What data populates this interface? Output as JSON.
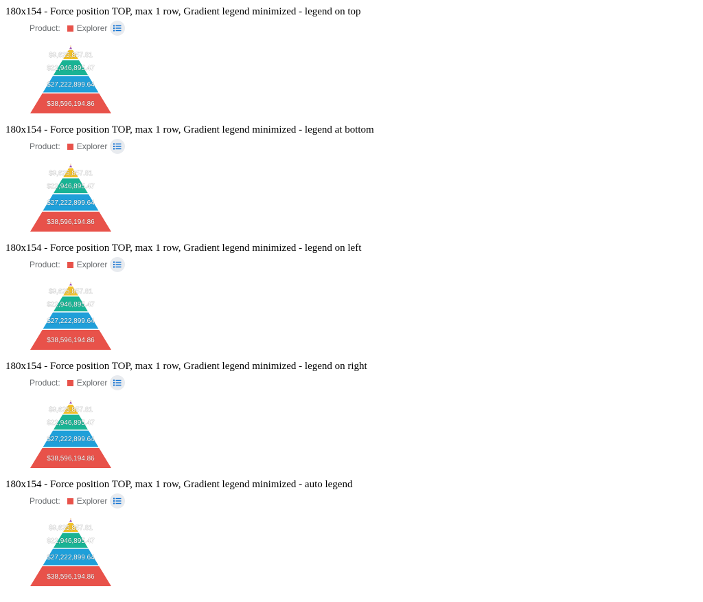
{
  "sections": [
    {
      "title": "180x154 - Force position TOP, max 1 row, Gradient legend minimized - legend on top"
    },
    {
      "title": "180x154 - Force position TOP, max 1 row, Gradient legend minimized - legend at bottom"
    },
    {
      "title": "180x154 - Force position TOP, max 1 row, Gradient legend minimized - legend on left"
    },
    {
      "title": "180x154 - Force position TOP, max 1 row, Gradient legend minimized - legend on right"
    },
    {
      "title": "180x154 - Force position TOP, max 1 row, Gradient legend minimized - auto legend"
    }
  ],
  "legend": {
    "label": "Product:",
    "item": "Explorer",
    "item_color": "#e8524a",
    "toggle_icon": "list-icon"
  },
  "chart_data": {
    "type": "pyramid",
    "segments": [
      {
        "label": "$38,596,194.86",
        "value": 38596194.86,
        "color": "#e8524a"
      },
      {
        "label": "$27,222,899.64",
        "value": 27222899.64,
        "color": "#1f9fd9"
      },
      {
        "label": "$22,946,895.47",
        "value": 22946895.47,
        "color": "#19b394"
      },
      {
        "label": "$9,625,857.81",
        "value": 9625857.81,
        "color": "#f2c12a"
      },
      {
        "label": "",
        "value": 1000000,
        "color": "#9b4fb0"
      },
      {
        "label": "",
        "value": 400000,
        "color": "#f0a030"
      }
    ]
  }
}
